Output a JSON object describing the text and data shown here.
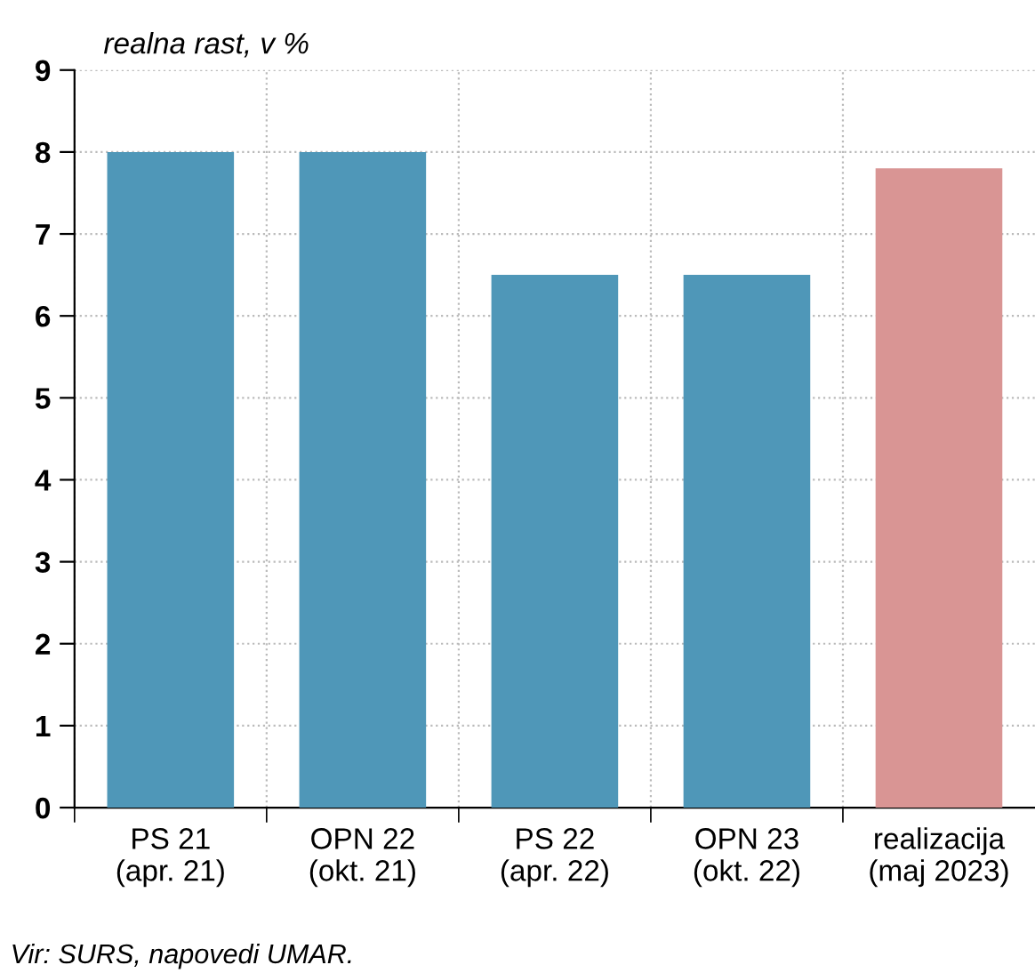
{
  "chart_data": {
    "type": "bar",
    "subtitle": "realna rast, v %",
    "categories": [
      "PS 21\n(apr. 21)",
      "OPN 22\n(okt. 21)",
      "PS 22\n(apr. 22)",
      "OPN 23\n(okt. 22)",
      "realizacija\n(maj 2023)"
    ],
    "values": [
      8,
      8,
      6.5,
      6.5,
      7.8
    ],
    "colors": [
      "#4f97b8",
      "#4f97b8",
      "#4f97b8",
      "#4f97b8",
      "#d99594"
    ],
    "ylim": [
      0,
      9
    ],
    "yticks": [
      0,
      1,
      2,
      3,
      4,
      5,
      6,
      7,
      8,
      9
    ],
    "grid": true,
    "annotations": [
      "Vir: SURS, napovedi UMAR."
    ]
  }
}
